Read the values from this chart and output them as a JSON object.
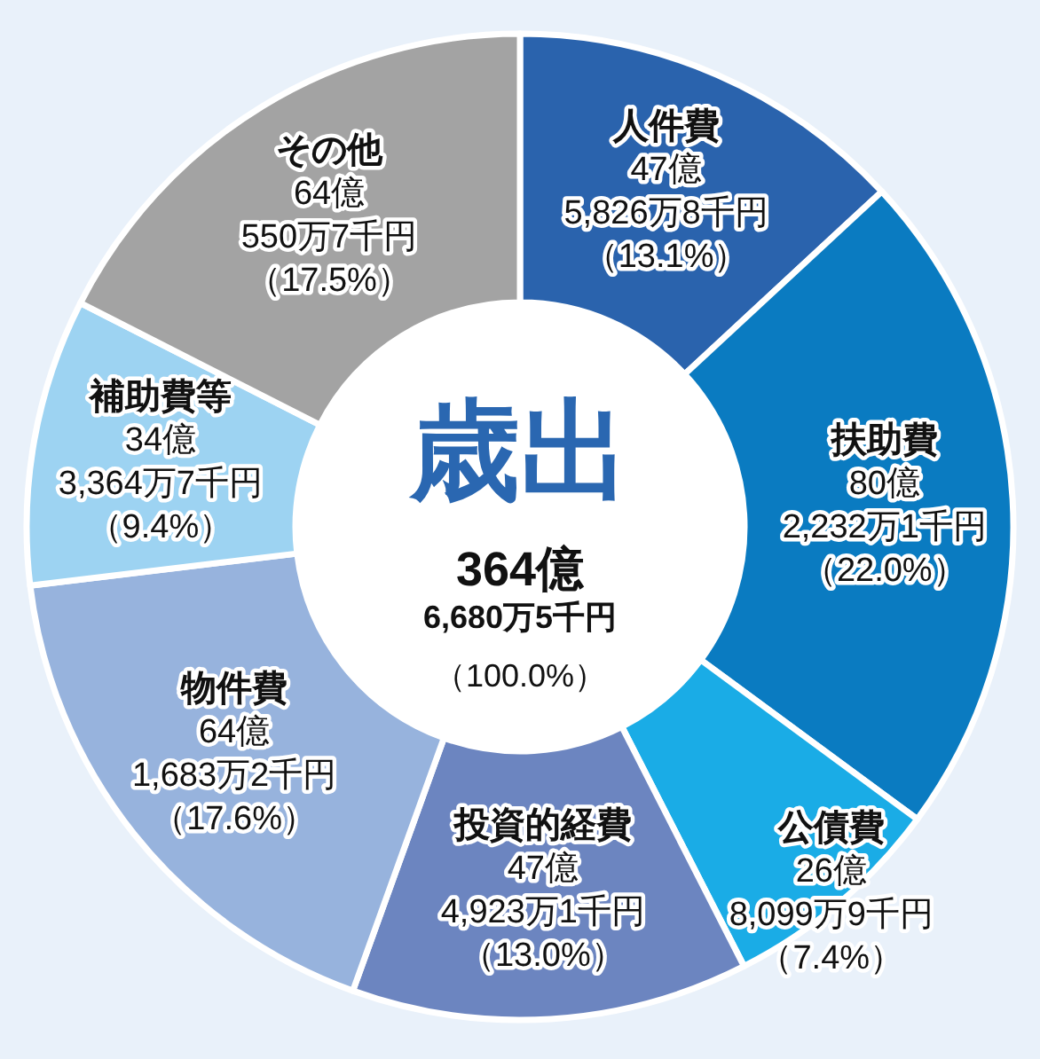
{
  "chart_data": {
    "type": "donut",
    "title": "歳出",
    "categories": [
      "人件費",
      "扶助費",
      "公債費",
      "投資的経費",
      "物件費",
      "補助費等",
      "その他"
    ],
    "values": [
      13.1,
      22.0,
      7.4,
      13.0,
      17.6,
      9.4,
      17.5
    ],
    "colors": [
      "#2a63ad",
      "#0a7bc1",
      "#1aace6",
      "#6c85c0",
      "#97b3dd",
      "#9dd3f2",
      "#a3a3a3"
    ],
    "value_labels": [
      "47億5,826万8千円（13.1%）",
      "80億2,232万1千円（22.0%）",
      "26億8,099万9千円（7.4%）",
      "47億4,923万1千円（13.0%）",
      "64億1,683万2千円（17.6%）",
      "34億3,364万7千円（9.4%）",
      "64億550万7千円（17.5%）"
    ],
    "annotations": [
      "364億",
      "6,680万5千円",
      "（100.0%）"
    ]
  }
}
